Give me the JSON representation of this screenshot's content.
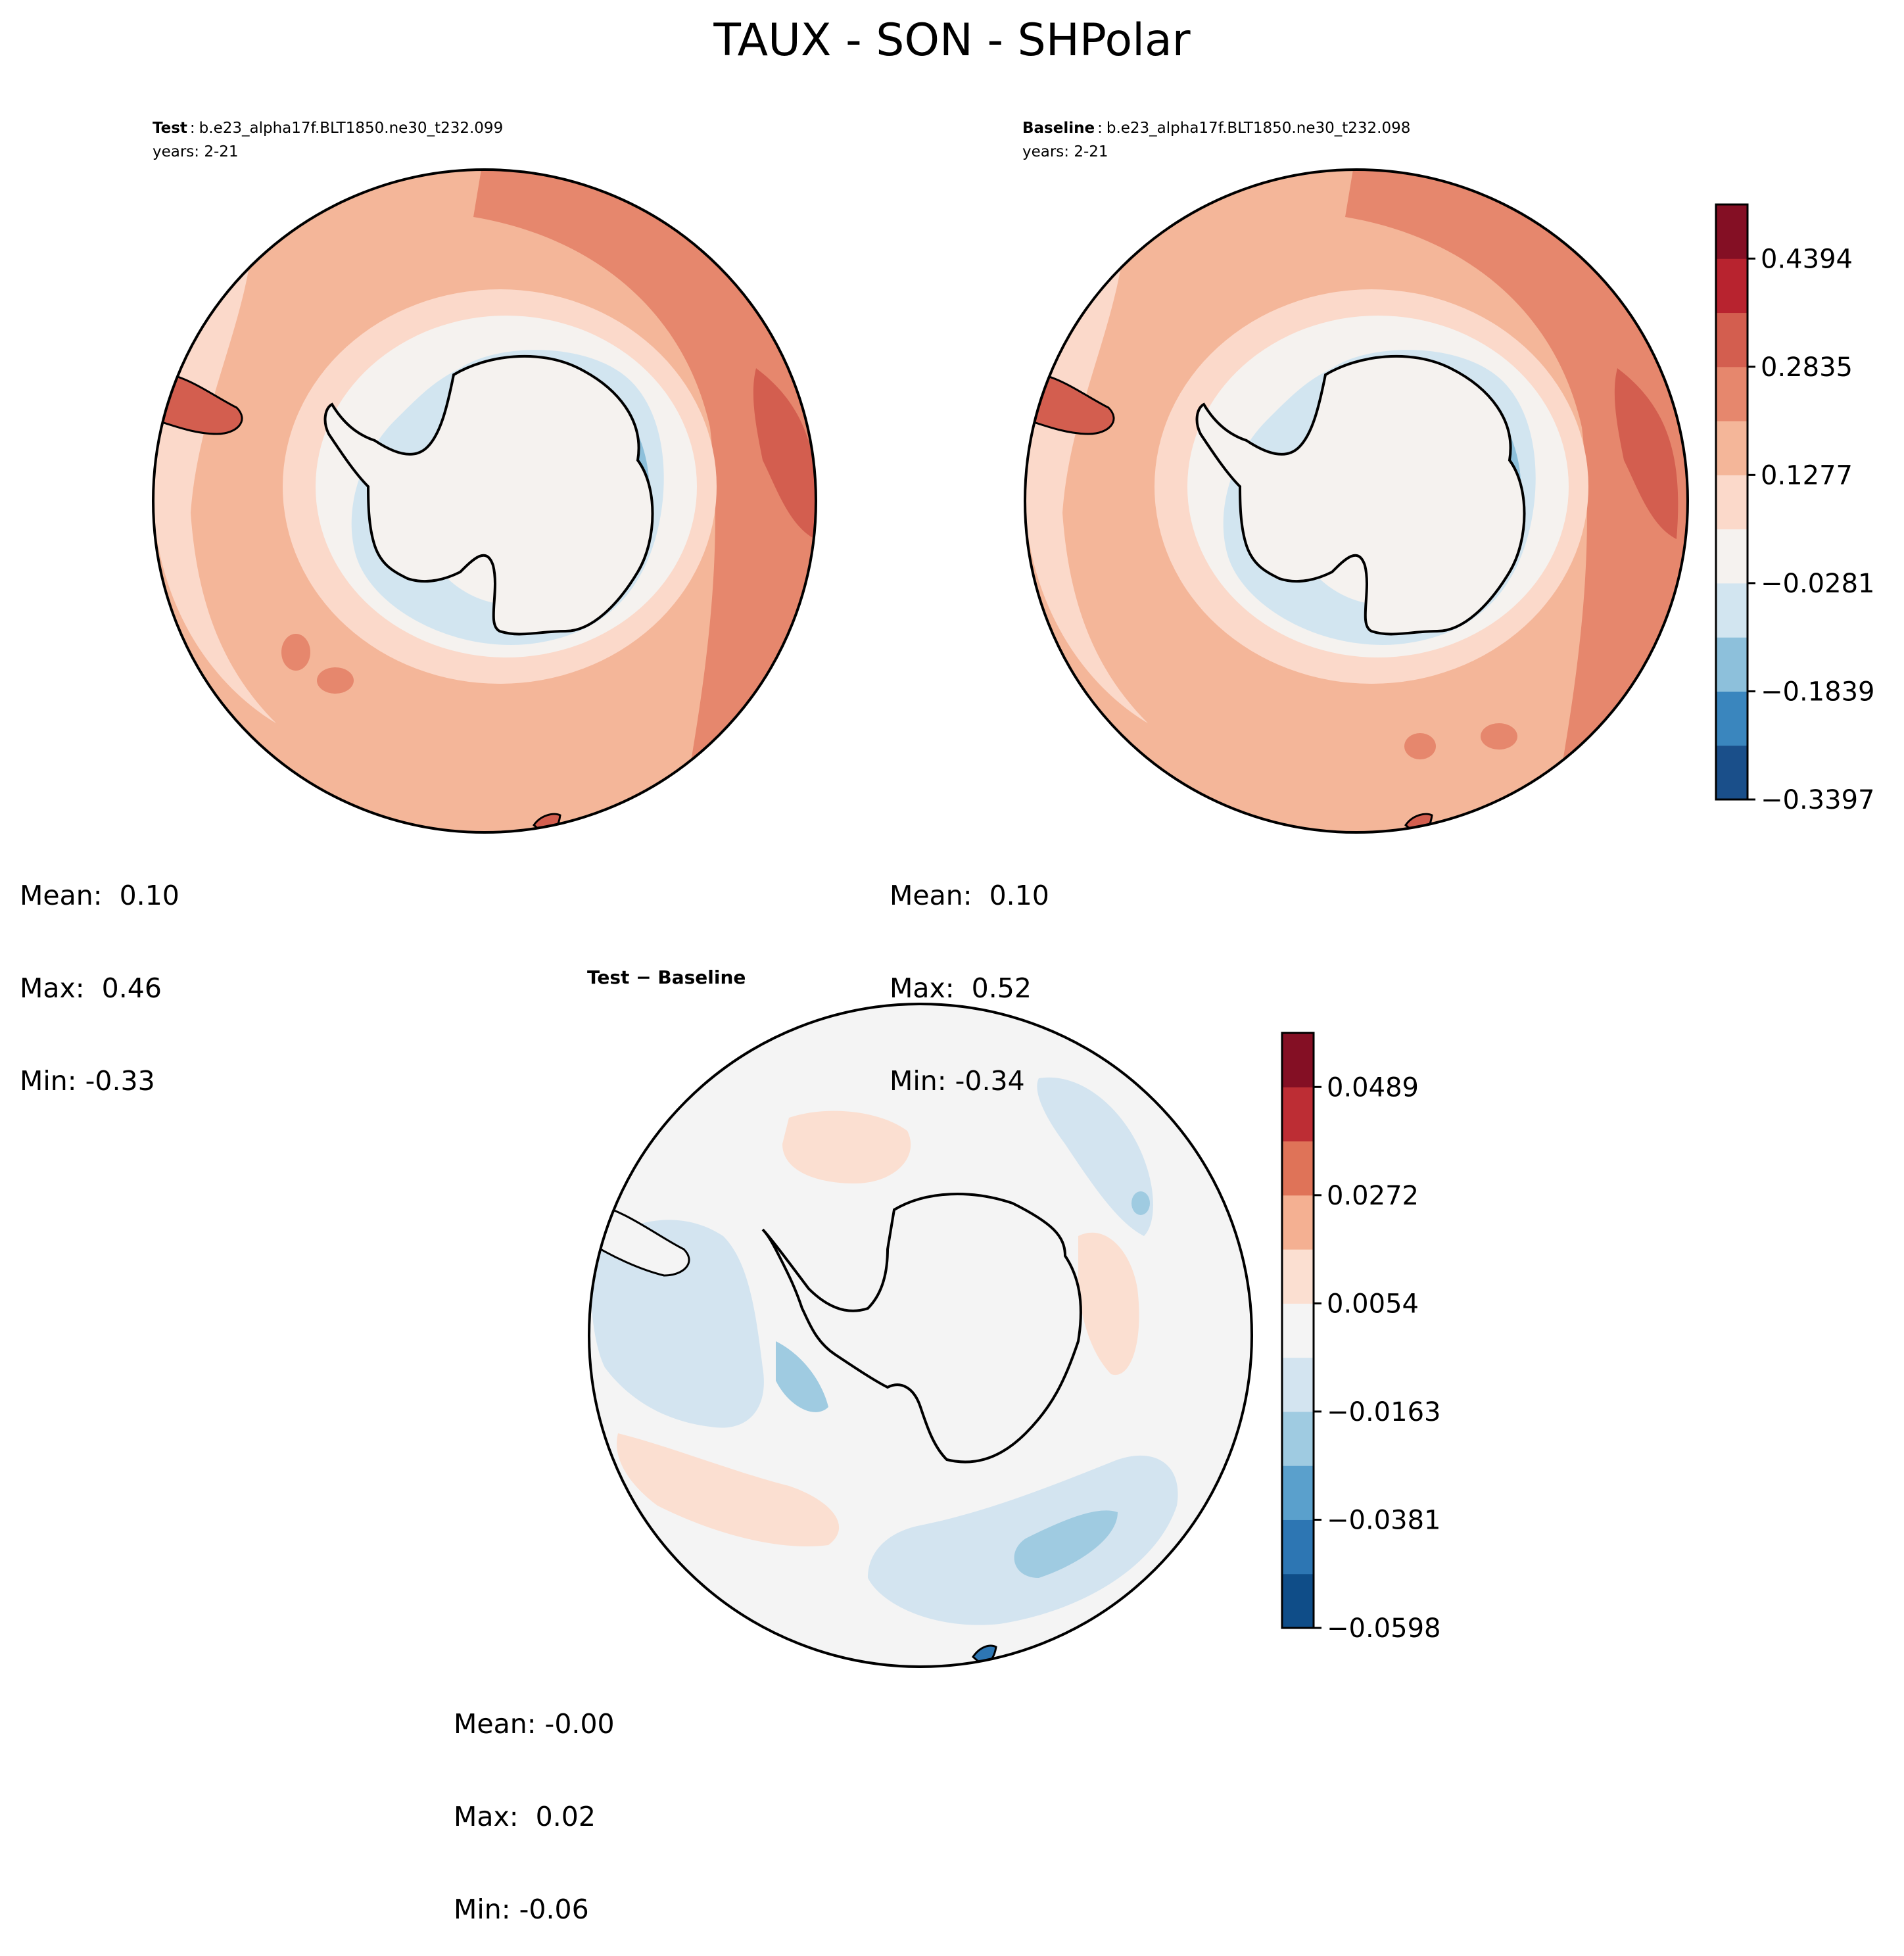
{
  "figure": {
    "title": "TAUX - SON - SHPolar"
  },
  "panels": {
    "test": {
      "label_bold": "Test",
      "label_sep": ":",
      "case": "b.e23_alpha17f.BLT1850.ne30_t232.099",
      "years": "years: 2-21",
      "stats": {
        "mean": "Mean:  0.10",
        "max": "Max:  0.46",
        "min": "Min: -0.33"
      }
    },
    "baseline": {
      "label_bold": "Baseline",
      "label_sep": ":",
      "case": "b.e23_alpha17f.BLT1850.ne30_t232.098",
      "years": "years: 2-21",
      "stats": {
        "mean": "Mean:  0.10",
        "max": "Max:  0.52",
        "min": "Min: -0.34"
      }
    },
    "diff": {
      "title": "Test − Baseline",
      "stats": {
        "mean": "Mean: -0.00",
        "max": "Max:  0.02",
        "min": "Min: -0.06"
      }
    }
  },
  "colorbars": {
    "main": {
      "ticks": [
        "0.4394",
        "0.2835",
        "0.1277",
        "−0.0281",
        "−0.1839",
        "−0.3397"
      ],
      "colors": [
        "#1a4f8a",
        "#3a86be",
        "#8dc0db",
        "#d2e5f0",
        "#f5f2ef",
        "#fbd9ca",
        "#f4b699",
        "#e6876d",
        "#d35e4f",
        "#b8232f",
        "#840f24"
      ]
    },
    "diff": {
      "ticks": [
        "0.0489",
        "0.0272",
        "0.0054",
        "−0.0163",
        "−0.0381",
        "−0.0598"
      ],
      "colors": [
        "#0f4d88",
        "#2d76b3",
        "#5aa0cc",
        "#9fcbe1",
        "#d3e4f0",
        "#f4f4f4",
        "#fbdfd1",
        "#f4b092",
        "#df7358",
        "#bd2d34",
        "#840f24"
      ]
    }
  },
  "map_colors": {
    "red_strong": "#d35e4f",
    "red_mid": "#e6876d",
    "red_light": "#f4b699",
    "pink": "#fbd9ca",
    "neutral": "#f5f2ef",
    "blue_light": "#d2e5f0",
    "blue_mid": "#8dc0db",
    "blue": "#3a86be",
    "blue_dark": "#1a4f8a",
    "coast": "#000000"
  }
}
